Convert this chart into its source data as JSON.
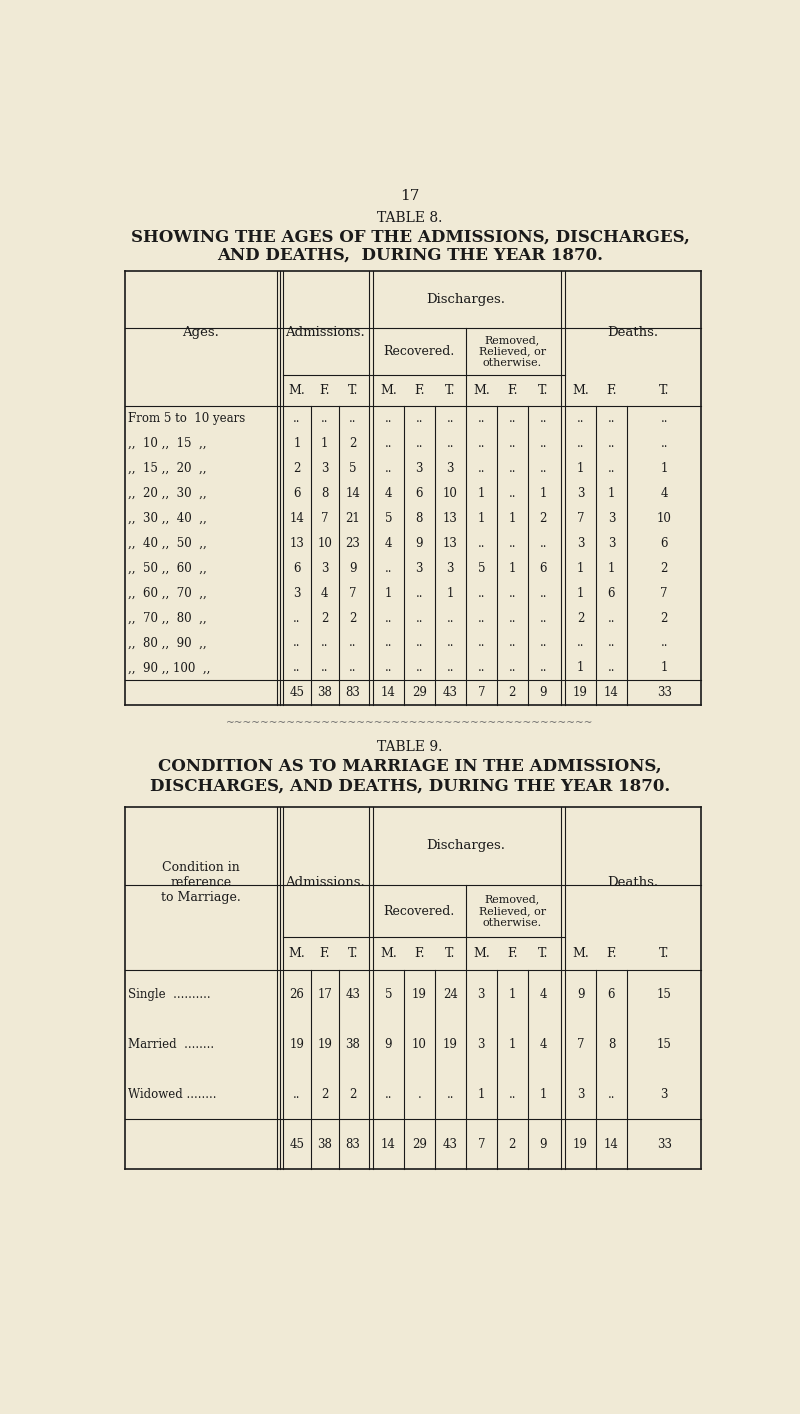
{
  "bg_color": "#f0ead6",
  "text_color": "#1a1a1a",
  "page_number": "17",
  "table8": {
    "table_label": "TABLE 8.",
    "title_line1": "SHOWING THE AGES OF THE ADMISSIONS, DISCHARGES,",
    "title_line2": "AND DEATHS,  DURING THE YEAR 1870.",
    "rows": [
      {
        "age": "From 5 to  10 years",
        "adm": [
          "..",
          "..",
          ".."
        ],
        "rec": [
          "..",
          "..",
          ".."
        ],
        "rem": [
          "..",
          "..",
          ".."
        ],
        "dth": [
          "..",
          "..",
          ".."
        ]
      },
      {
        "age": ",,  10 ,,  15  ,,",
        "adm": [
          "1",
          "1",
          "2"
        ],
        "rec": [
          "..",
          "..",
          ".."
        ],
        "rem": [
          "..",
          "..",
          ".."
        ],
        "dth": [
          "..",
          "..",
          ".."
        ]
      },
      {
        "age": ",,  15 ,,  20  ,,",
        "adm": [
          "2",
          "3",
          "5"
        ],
        "rec": [
          "..",
          "3",
          "3"
        ],
        "rem": [
          "..",
          "..",
          ".."
        ],
        "dth": [
          "1",
          "..",
          "1"
        ]
      },
      {
        "age": ",,  20 ,,  30  ,,",
        "adm": [
          "6",
          "8",
          "14"
        ],
        "rec": [
          "4",
          "6",
          "10"
        ],
        "rem": [
          "1",
          "..",
          "1"
        ],
        "dth": [
          "3",
          "1",
          "4"
        ]
      },
      {
        "age": ",,  30 ,,  40  ,,",
        "adm": [
          "14",
          "7",
          "21"
        ],
        "rec": [
          "5",
          "8",
          "13"
        ],
        "rem": [
          "1",
          "1",
          "2"
        ],
        "dth": [
          "7",
          "3",
          "10"
        ]
      },
      {
        "age": ",,  40 ,,  50  ,,",
        "adm": [
          "13",
          "10",
          "23"
        ],
        "rec": [
          "4",
          "9",
          "13"
        ],
        "rem": [
          "..",
          "..",
          ".."
        ],
        "dth": [
          "3",
          "3",
          "6"
        ]
      },
      {
        "age": ",,  50 ,,  60  ,,",
        "adm": [
          "6",
          "3",
          "9"
        ],
        "rec": [
          "..",
          "3",
          "3"
        ],
        "rem": [
          "5",
          "1",
          "6"
        ],
        "dth": [
          "1",
          "1",
          "2"
        ]
      },
      {
        "age": ",,  60 ,,  70  ,,",
        "adm": [
          "3",
          "4",
          "7"
        ],
        "rec": [
          "1",
          "..",
          "1"
        ],
        "rem": [
          "..",
          "..",
          ".."
        ],
        "dth": [
          "1",
          "6",
          "7"
        ]
      },
      {
        "age": ",,  70 ,,  80  ,,",
        "adm": [
          "..",
          "2",
          "2"
        ],
        "rec": [
          "..",
          "..",
          ".."
        ],
        "rem": [
          "..",
          "..",
          ".."
        ],
        "dth": [
          "2",
          "..",
          "2"
        ]
      },
      {
        "age": ",,  80 ,,  90  ,,",
        "adm": [
          "..",
          "..",
          ".."
        ],
        "rec": [
          "..",
          "..",
          ".."
        ],
        "rem": [
          "..",
          "..",
          ".."
        ],
        "dth": [
          "..",
          "..",
          ".."
        ]
      },
      {
        "age": ",,  90 ,, 100  ,,",
        "adm": [
          "..",
          "..",
          ".."
        ],
        "rec": [
          "..",
          "..",
          ".."
        ],
        "rem": [
          "..",
          "..",
          ".."
        ],
        "dth": [
          "1",
          "..",
          "1"
        ]
      },
      {
        "age": "",
        "adm": [
          "45",
          "38",
          "83"
        ],
        "rec": [
          "14",
          "29",
          "43"
        ],
        "rem": [
          "7",
          "2",
          "9"
        ],
        "dth": [
          "19",
          "14",
          "33"
        ]
      }
    ]
  },
  "table9": {
    "table_label": "TABLE 9.",
    "title_line1": "CONDITION AS TO MARRIAGE IN THE ADMISSIONS,",
    "title_line2": "DISCHARGES, AND DEATHS, DURING THE YEAR 1870.",
    "rows": [
      {
        "cond": "Single  ..........",
        "adm": [
          "26",
          "17",
          "43"
        ],
        "rec": [
          "5",
          "19",
          "24"
        ],
        "rem": [
          "3",
          "1",
          "4"
        ],
        "dth": [
          "9",
          "6",
          "15"
        ]
      },
      {
        "cond": "Married  ........",
        "adm": [
          "19",
          "19",
          "38"
        ],
        "rec": [
          "9",
          "10",
          "19"
        ],
        "rem": [
          "3",
          "1",
          "4"
        ],
        "dth": [
          "7",
          "8",
          "15"
        ]
      },
      {
        "cond": "Widowed ........",
        "adm": [
          "..",
          "2",
          "2"
        ],
        "rec": [
          "..",
          ".",
          ".."
        ],
        "rem": [
          "1",
          "..",
          "1"
        ],
        "dth": [
          "3",
          "..",
          "3"
        ]
      },
      {
        "cond": "",
        "adm": [
          "45",
          "38",
          "83"
        ],
        "rec": [
          "14",
          "29",
          "43"
        ],
        "rem": [
          "7",
          "2",
          "9"
        ],
        "dth": [
          "19",
          "14",
          "33"
        ]
      }
    ]
  }
}
